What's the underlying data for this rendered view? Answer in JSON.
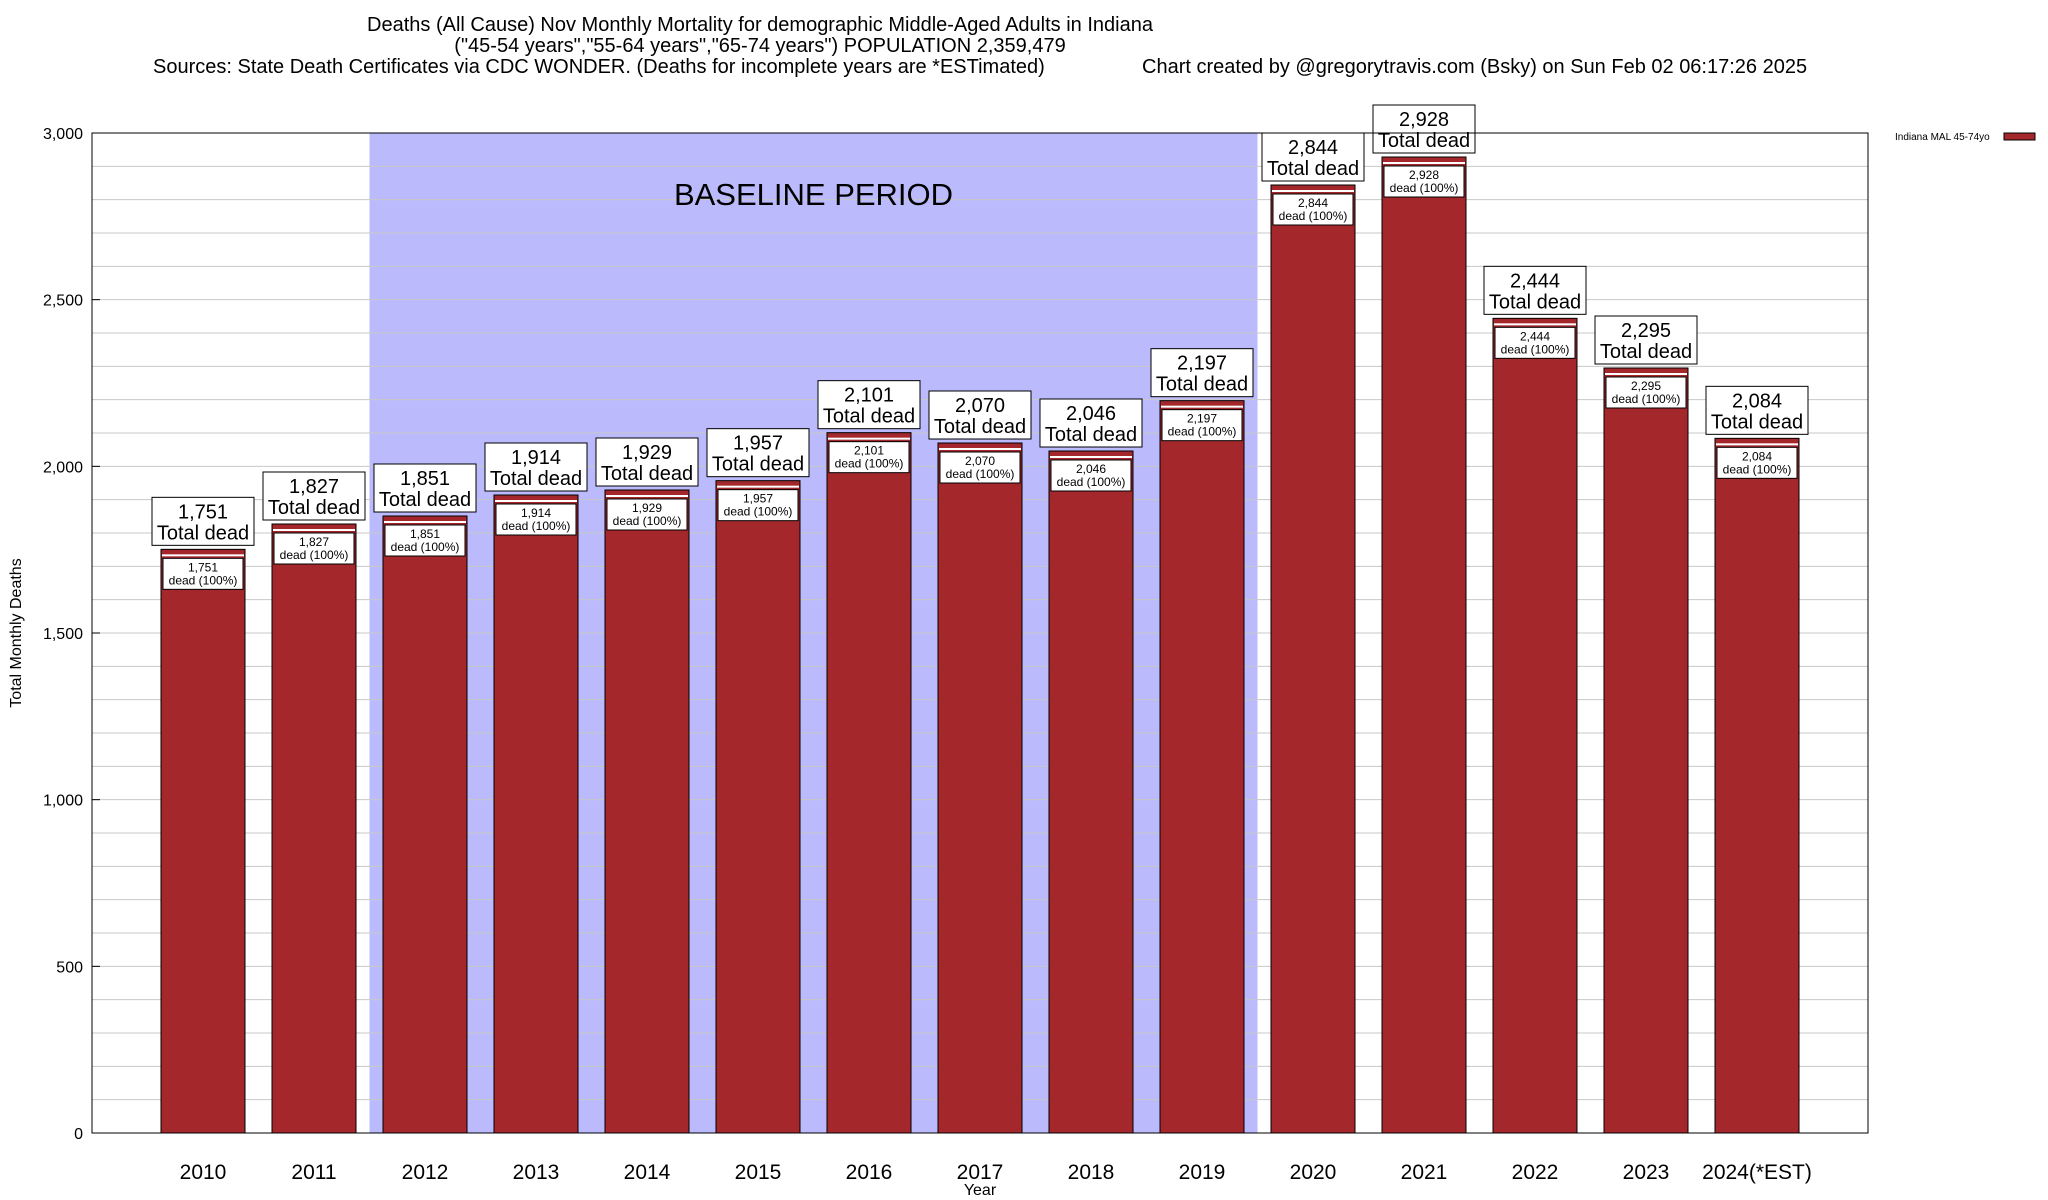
{
  "header": {
    "title_line1": "Deaths (All Cause) Nov Monthly Mortality for demographic Middle-Aged Adults in Indiana",
    "title_line2": "(\"45-54 years\",\"55-64 years\",\"65-74 years\") POPULATION 2,359,479",
    "sources": "Sources: State Death Certificates via CDC WONDER. (Deaths for incomplete years are *ESTimated)",
    "credit": "Chart created by @gregorytravis.com (Bsky) on Sun Feb 02 06:17:26 2025"
  },
  "chart_data": {
    "type": "bar",
    "categories": [
      "2010",
      "2011",
      "2012",
      "2013",
      "2014",
      "2015",
      "2016",
      "2017",
      "2018",
      "2019",
      "2020",
      "2021",
      "2022",
      "2023",
      "2024(*EST)"
    ],
    "series": [
      {
        "name": "Indiana MAL 45-74yo",
        "color": "#a4282b",
        "values": [
          1751,
          1827,
          1851,
          1914,
          1929,
          1957,
          2101,
          2070,
          2046,
          2197,
          2844,
          2928,
          2444,
          2295,
          2084
        ]
      }
    ],
    "value_labels": [
      "1,751",
      "1,827",
      "1,851",
      "1,914",
      "1,929",
      "1,957",
      "2,101",
      "2,070",
      "2,046",
      "2,197",
      "2,844",
      "2,928",
      "2,444",
      "2,295",
      "2,084"
    ],
    "total_label_suffix": "Total dead",
    "inner_label_suffix": "dead (100%)",
    "xlabel": "Year",
    "ylabel": "Total Monthly Deaths",
    "ylim": [
      0,
      3000
    ],
    "yticks": [
      0,
      500,
      1000,
      1500,
      2000,
      2500,
      3000
    ],
    "ytick_labels": [
      "0",
      "500",
      "1,000",
      "1,500",
      "2,000",
      "2,500",
      "3,000"
    ],
    "minor_grid_step": 100,
    "grid": true,
    "legend_position": "top-right",
    "baseline_period": {
      "label": "BASELINE PERIOD",
      "from": "2012",
      "to": "2019",
      "color": "#babafd"
    },
    "colors": {
      "bar": "#a4282b",
      "bar_top_stripe": "#ffffff",
      "grid": "#c8c8c8"
    }
  }
}
